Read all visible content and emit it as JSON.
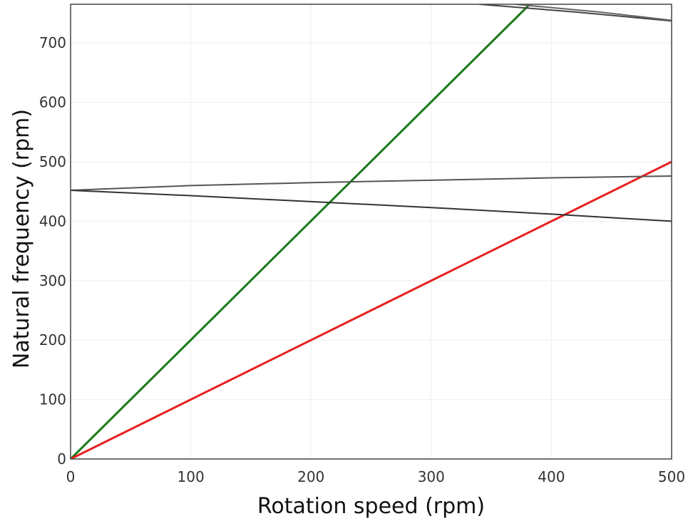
{
  "chart_data": {
    "type": "line",
    "xlabel": "Rotation speed (rpm)",
    "ylabel": "Natural frequency (rpm)",
    "xlim": [
      0,
      500
    ],
    "ylim": [
      0,
      765
    ],
    "xticks": [
      0,
      100,
      200,
      300,
      400,
      500
    ],
    "yticks": [
      0,
      100,
      200,
      300,
      400,
      500,
      600,
      700
    ],
    "grid": true,
    "legend": "none",
    "series": [
      {
        "color": "#1a7a1a",
        "x": [
          0,
          382
        ],
        "y": [
          0,
          765
        ]
      },
      {
        "color": "#e82020",
        "x": [
          0,
          500
        ],
        "y": [
          0,
          500
        ]
      },
      {
        "color": "#555555",
        "x": [
          0,
          100,
          200,
          300,
          400,
          500
        ],
        "y": [
          452,
          460,
          465,
          469,
          473,
          476
        ]
      },
      {
        "color": "#333333",
        "x": [
          0,
          100,
          200,
          300,
          400,
          500
        ],
        "y": [
          452,
          443,
          433,
          423,
          412,
          400
        ]
      },
      {
        "color": "#444444",
        "x": [
          340,
          420,
          500
        ],
        "y": [
          765,
          752,
          737
        ]
      },
      {
        "color": "#666666",
        "x": [
          370,
          440,
          500
        ],
        "y": [
          765,
          752,
          738
        ]
      }
    ]
  }
}
